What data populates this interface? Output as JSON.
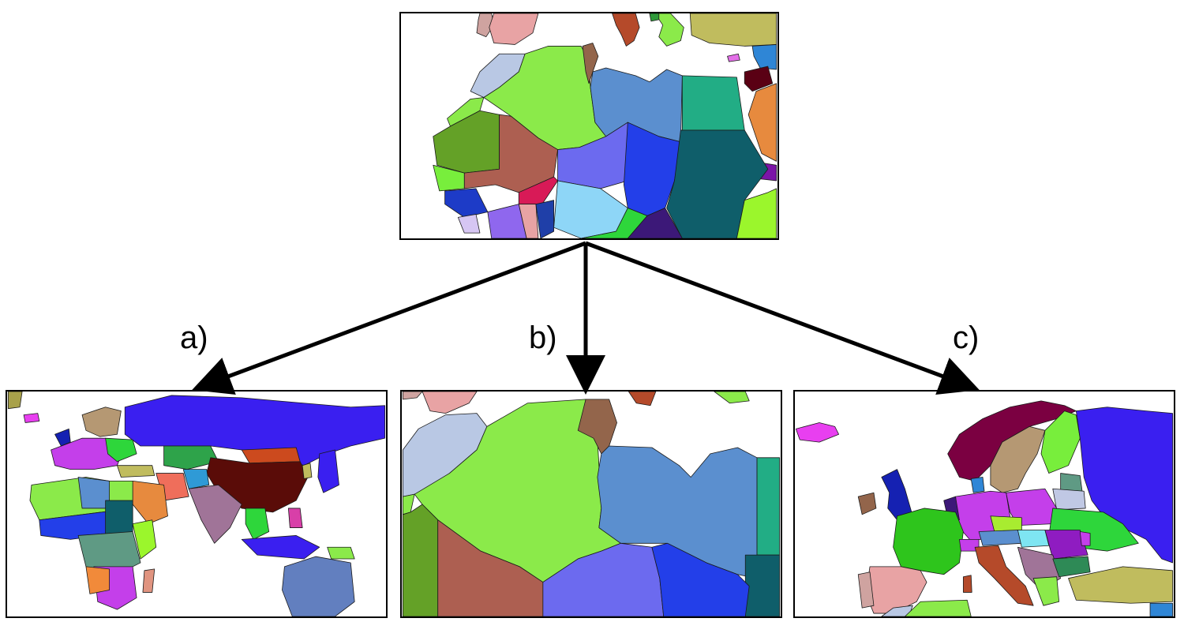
{
  "labels": {
    "a": "a)",
    "b": "b)",
    "c": "c)"
  },
  "colors": {
    "arrow": "#000000",
    "border": "#000000",
    "algeria": "#8bea4a",
    "libya": "#5b8fcf",
    "egypt": "#22ad85",
    "morocco": "#b9c8e4",
    "mauritania": "#64a127",
    "mali": "#ad5f51",
    "niger": "#6c6aef",
    "chad": "#233fe9",
    "sudan": "#0f5e6a",
    "nigeria": "#8ed6f7",
    "tunisia": "#93654b",
    "russia": "#3a1ff0",
    "china": "#5a0c08",
    "australia": "#627fbf",
    "norway": "#7b0041",
    "sweden": "#b59873",
    "uk": "#1521b2",
    "france": "#2ec51c",
    "spain": "#e8a3a4",
    "germany": "#c43fea"
  }
}
